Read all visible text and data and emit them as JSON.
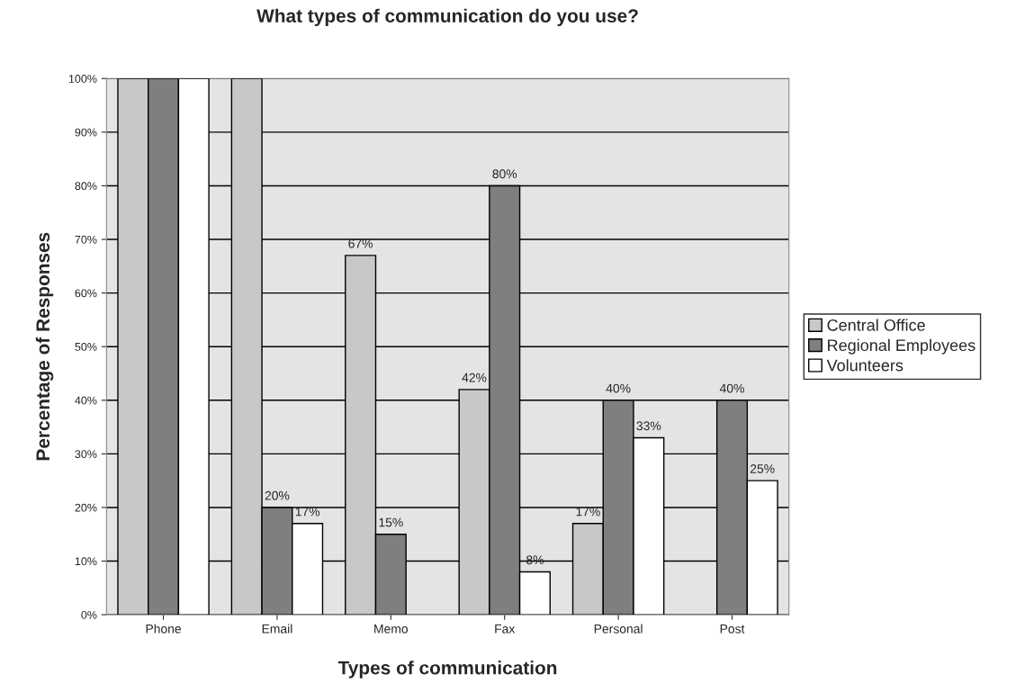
{
  "chart_data": {
    "type": "bar",
    "title": "What types of communication do you use?",
    "xlabel": "Types of communication",
    "ylabel": "Percentage of Responses",
    "categories": [
      "Phone",
      "Email",
      "Memo",
      "Fax",
      "Personal",
      "Post"
    ],
    "series": [
      {
        "name": "Central Office",
        "color": "#c8c8c8",
        "values": [
          100,
          100,
          67,
          42,
          17,
          null
        ],
        "value_labels": [
          null,
          null,
          "67%",
          "42%",
          "17%",
          null
        ]
      },
      {
        "name": "Regional Employees",
        "color": "#7f7f7f",
        "values": [
          100,
          20,
          15,
          80,
          40,
          40
        ],
        "value_labels": [
          null,
          "20%",
          "15%",
          "80%",
          "40%",
          "40%"
        ]
      },
      {
        "name": "Volunteers",
        "color": "#ffffff",
        "values": [
          100,
          17,
          null,
          8,
          33,
          25
        ],
        "value_labels": [
          null,
          "17%",
          null,
          "8%",
          "33%",
          "25%"
        ]
      }
    ],
    "ylim": [
      0,
      100
    ],
    "yticks": [
      {
        "value": 0,
        "label": "0%"
      },
      {
        "value": 10,
        "label": "10%"
      },
      {
        "value": 20,
        "label": "20%"
      },
      {
        "value": 30,
        "label": "30%"
      },
      {
        "value": 40,
        "label": "40%"
      },
      {
        "value": 50,
        "label": "50%"
      },
      {
        "value": 60,
        "label": "60%"
      },
      {
        "value": 70,
        "label": "70%"
      },
      {
        "value": 80,
        "label": "80%"
      },
      {
        "value": 90,
        "label": "90%"
      },
      {
        "value": 100,
        "label": "100%"
      }
    ],
    "grid": "y",
    "legend": "right"
  }
}
